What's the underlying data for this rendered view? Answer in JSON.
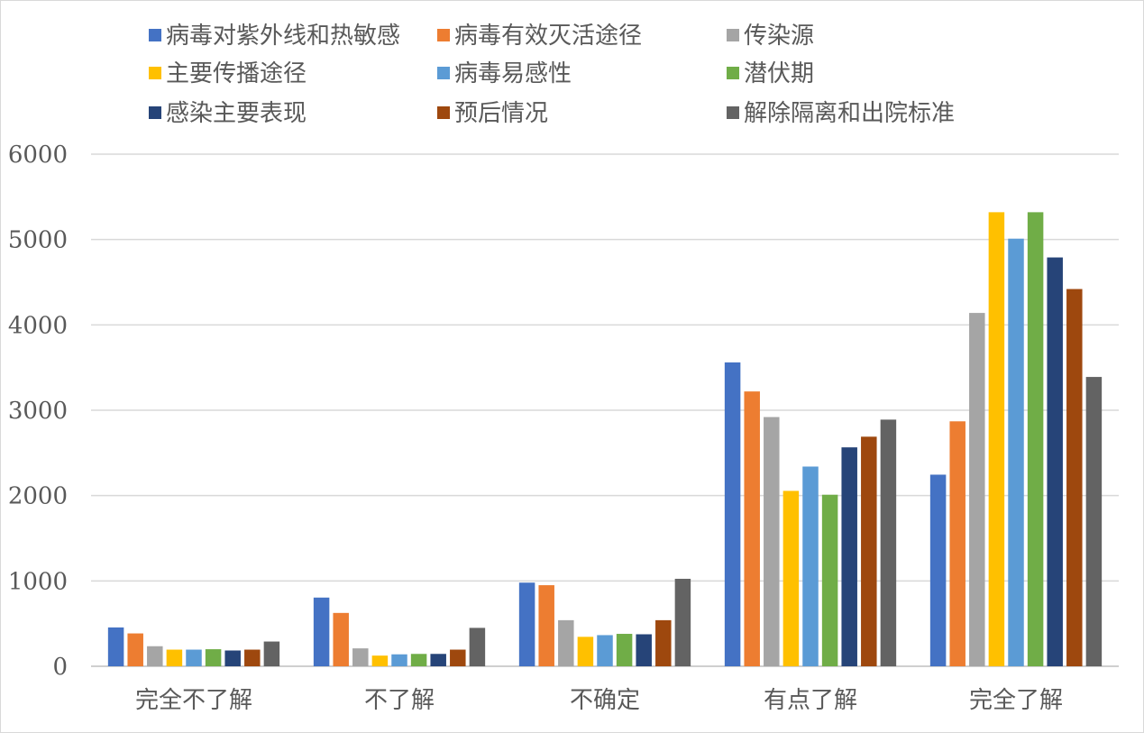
{
  "chart_data": {
    "type": "bar",
    "categories": [
      "完全不了解",
      "不了解",
      "不确定",
      "有点了解",
      "完全了解"
    ],
    "ylim": [
      0,
      6000
    ],
    "yticks": [
      0,
      1000,
      2000,
      3000,
      4000,
      5000,
      6000
    ],
    "grid": true,
    "legend_position": "top",
    "series": [
      {
        "name": "病毒对紫外线和热敏感",
        "color": "#4472c4",
        "values": [
          455,
          805,
          980,
          3560,
          2245
        ]
      },
      {
        "name": "病毒有效灭活途径",
        "color": "#ed7d31",
        "values": [
          385,
          625,
          950,
          3220,
          2870
        ]
      },
      {
        "name": "传染源",
        "color": "#a5a5a5",
        "values": [
          235,
          210,
          540,
          2920,
          4140
        ]
      },
      {
        "name": "主要传播途径",
        "color": "#ffc000",
        "values": [
          195,
          125,
          345,
          2055,
          5320
        ]
      },
      {
        "name": "病毒易感性",
        "color": "#5b9bd5",
        "values": [
          195,
          140,
          365,
          2340,
          5010
        ]
      },
      {
        "name": "潜伏期",
        "color": "#70ad47",
        "values": [
          200,
          145,
          380,
          2010,
          5320
        ]
      },
      {
        "name": "感染主要表现",
        "color": "#264478",
        "values": [
          185,
          145,
          375,
          2565,
          4790
        ]
      },
      {
        "name": "预后情况",
        "color": "#9e480e",
        "values": [
          195,
          195,
          540,
          2690,
          4420
        ]
      },
      {
        "name": "解除隔离和出院标准",
        "color": "#636363",
        "values": [
          290,
          450,
          1025,
          2890,
          3390
        ]
      }
    ]
  },
  "colors": {
    "grid": "#d9d9d9",
    "axis": "#bfbfbf",
    "text": "#595959"
  }
}
